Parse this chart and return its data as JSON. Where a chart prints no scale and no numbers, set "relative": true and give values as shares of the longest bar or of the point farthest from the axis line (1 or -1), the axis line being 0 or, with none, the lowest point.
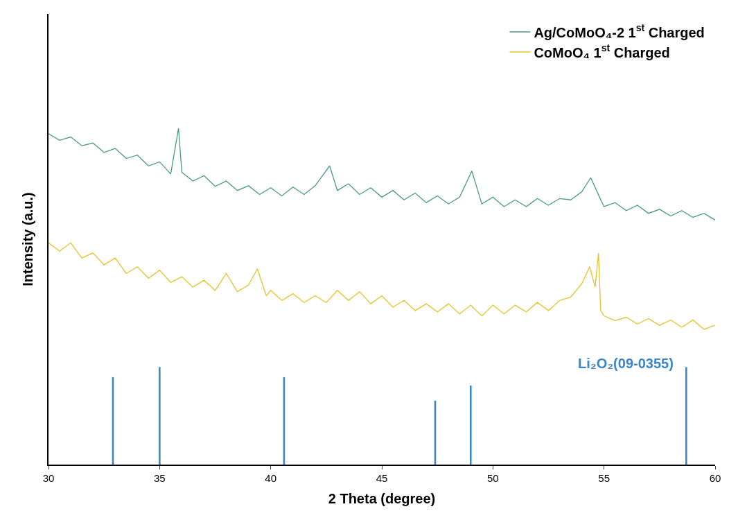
{
  "chart_data": {
    "type": "line",
    "relative": true,
    "xlabel": "2 Theta (degree)",
    "ylabel": "Intensity (a.u.)",
    "xlim": [
      30,
      60
    ],
    "xticks": [
      30,
      35,
      40,
      45,
      50,
      55,
      60
    ],
    "tick_labels": "x",
    "legend": "top right",
    "marker": "none",
    "line_style": "solid",
    "annotations": [
      "Li₂O₂(09-0355)"
    ],
    "series": [
      {
        "name": "Ag/CoMoO₄-2 1$^{st}$ Charged",
        "color": "#4a9a84",
        "x": [
          30,
          30.5,
          31,
          31.5,
          32,
          32.5,
          33,
          33.5,
          34,
          34.5,
          35,
          35.5,
          35.85,
          36,
          36.5,
          37,
          37.5,
          38,
          38.5,
          39,
          39.5,
          40,
          40.5,
          41,
          41.5,
          42,
          42.65,
          43,
          43.5,
          44,
          44.5,
          45,
          45.5,
          46,
          46.5,
          47,
          47.5,
          48,
          48.5,
          49.05,
          49.5,
          50,
          50.5,
          51,
          51.5,
          52,
          52.5,
          53,
          53.5,
          54,
          54.4,
          54.8,
          55,
          55.5,
          56,
          56.5,
          57,
          57.5,
          58,
          58.5,
          59,
          59.5,
          60
        ],
        "values": [
          0.984,
          0.964,
          0.974,
          0.948,
          0.956,
          0.928,
          0.94,
          0.91,
          0.92,
          0.888,
          0.9,
          0.864,
          1.0,
          0.869,
          0.843,
          0.859,
          0.827,
          0.843,
          0.815,
          0.829,
          0.803,
          0.823,
          0.799,
          0.825,
          0.803,
          0.829,
          0.888,
          0.815,
          0.835,
          0.803,
          0.823,
          0.795,
          0.815,
          0.787,
          0.807,
          0.779,
          0.799,
          0.775,
          0.795,
          0.873,
          0.775,
          0.795,
          0.767,
          0.787,
          0.767,
          0.791,
          0.771,
          0.791,
          0.787,
          0.811,
          0.853,
          0.795,
          0.767,
          0.779,
          0.755,
          0.771,
          0.747,
          0.759,
          0.739,
          0.755,
          0.735,
          0.747,
          0.727
        ]
      },
      {
        "name": "CoMoO₄ 1$^{st}$ Charged",
        "color": "#e8c22a",
        "x": [
          30,
          30.5,
          31,
          31.5,
          32,
          32.5,
          33,
          33.5,
          34,
          34.5,
          35,
          35.5,
          36,
          36.5,
          37,
          37.5,
          38,
          38.5,
          39,
          39.4,
          39.8,
          40,
          40.5,
          41,
          41.5,
          42,
          42.5,
          43,
          43.5,
          44,
          44.5,
          45,
          45.5,
          46,
          46.5,
          47,
          47.5,
          48,
          48.5,
          49,
          49.5,
          50,
          50.5,
          51,
          51.5,
          52,
          52.5,
          53,
          53.5,
          54,
          54.35,
          54.6,
          54.75,
          54.85,
          55,
          55.5,
          56,
          56.5,
          57,
          57.5,
          58,
          58.5,
          59,
          59.5,
          60
        ],
        "values": [
          0.659,
          0.635,
          0.659,
          0.614,
          0.629,
          0.594,
          0.614,
          0.568,
          0.588,
          0.554,
          0.578,
          0.542,
          0.558,
          0.528,
          0.548,
          0.518,
          0.568,
          0.514,
          0.534,
          0.582,
          0.502,
          0.518,
          0.488,
          0.508,
          0.482,
          0.502,
          0.482,
          0.518,
          0.488,
          0.514,
          0.478,
          0.502,
          0.468,
          0.488,
          0.458,
          0.478,
          0.454,
          0.478,
          0.448,
          0.474,
          0.442,
          0.474,
          0.448,
          0.474,
          0.454,
          0.482,
          0.458,
          0.488,
          0.498,
          0.538,
          0.588,
          0.528,
          0.629,
          0.458,
          0.442,
          0.428,
          0.438,
          0.418,
          0.434,
          0.414,
          0.43,
          0.408,
          0.43,
          0.402,
          0.414
        ]
      },
      {
        "type": "bar",
        "color": "#3a86c8",
        "x": [
          32.9,
          35.0,
          40.6,
          47.4,
          49.0,
          58.7
        ],
        "values": [
          0.26,
          0.29,
          0.26,
          0.19,
          0.235,
          0.29
        ]
      }
    ]
  }
}
